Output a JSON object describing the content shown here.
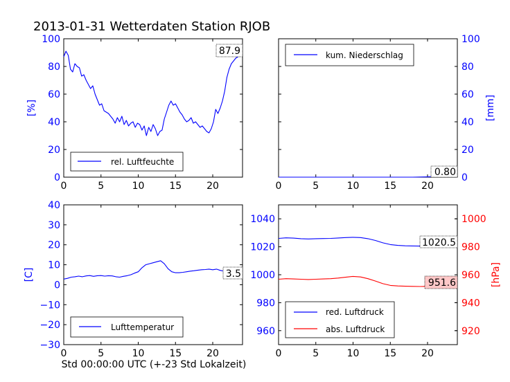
{
  "page_title": "2013-01-31 Wetterdaten Station RJOB",
  "bottom_xlabel": "Std 00:00:00 UTC (+-23 Std Lokalzeit)",
  "colors": {
    "blue": "#0000ff",
    "red": "#ff0000",
    "black": "#000000",
    "annot_pink": "#ffc8c8"
  },
  "chart_data": [
    {
      "id": "humidity",
      "type": "line",
      "title": "",
      "xlabel": "",
      "ylabel": "[%]",
      "xlim": [
        0,
        24
      ],
      "ylim": [
        0,
        100
      ],
      "xticks": [
        "0",
        "5",
        "10",
        "15",
        "20"
      ],
      "yticks": [
        "0",
        "20",
        "40",
        "60",
        "80",
        "100"
      ],
      "grid": false,
      "legend_position": "lower-left",
      "series": [
        {
          "name": "rel. Luftfeuchte",
          "color": "#0000ff",
          "x": [
            0,
            0.3,
            0.6,
            0.9,
            1.2,
            1.5,
            1.8,
            2.1,
            2.4,
            2.7,
            3.0,
            3.3,
            3.6,
            3.9,
            4.2,
            4.5,
            4.8,
            5.1,
            5.4,
            5.7,
            6.0,
            6.3,
            6.6,
            6.9,
            7.2,
            7.5,
            7.8,
            8.1,
            8.4,
            8.7,
            9.0,
            9.3,
            9.6,
            9.9,
            10.2,
            10.5,
            10.8,
            11.1,
            11.4,
            11.7,
            12.0,
            12.3,
            12.6,
            12.9,
            13.2,
            13.5,
            13.8,
            14.1,
            14.4,
            14.7,
            15.0,
            15.3,
            15.6,
            15.9,
            16.2,
            16.5,
            16.8,
            17.1,
            17.4,
            17.7,
            18.0,
            18.3,
            18.6,
            18.9,
            19.2,
            19.5,
            19.8,
            20.1,
            20.4,
            20.7,
            21.0,
            21.3,
            21.6,
            21.9,
            22.2,
            22.5,
            22.8,
            23.1,
            23.4,
            23.7,
            24.0
          ],
          "y": [
            87,
            91,
            88,
            78,
            76,
            82,
            80,
            79,
            73,
            74,
            70,
            67,
            64,
            66,
            60,
            56,
            52,
            53,
            48,
            47,
            46,
            44,
            42,
            39,
            43,
            40,
            44,
            38,
            41,
            37,
            39,
            40,
            36,
            39,
            38,
            34,
            37,
            30,
            36,
            33,
            38,
            35,
            30,
            33,
            34,
            42,
            47,
            52,
            55,
            52,
            53,
            50,
            47,
            45,
            42,
            40,
            41,
            43,
            39,
            40,
            38,
            36,
            37,
            35,
            33,
            32,
            35,
            40,
            49,
            46,
            50,
            55,
            62,
            72,
            78,
            82,
            84,
            86,
            87,
            88,
            87.9
          ]
        }
      ],
      "annotation": {
        "text": "87.9",
        "position": "upper-right"
      }
    },
    {
      "id": "precipitation",
      "type": "line",
      "title": "",
      "xlabel": "",
      "ylabel": "[mm]",
      "xlim": [
        0,
        24
      ],
      "ylim": [
        0,
        100
      ],
      "xticks": [
        "0",
        "5",
        "10",
        "15",
        "20"
      ],
      "yticks": [
        "0",
        "20",
        "40",
        "60",
        "80",
        "100"
      ],
      "y_axis_side": "right",
      "grid": false,
      "legend_position": "upper-left",
      "series": [
        {
          "name": "kum. Niederschlag",
          "color": "#0000ff",
          "x": [
            0,
            6,
            12,
            18,
            20,
            21,
            22,
            23,
            24
          ],
          "y": [
            0,
            0,
            0,
            0,
            0.2,
            0.4,
            0.6,
            0.8,
            0.8
          ]
        }
      ],
      "annotation": {
        "text": "0.80",
        "position": "lower-right"
      }
    },
    {
      "id": "temperature",
      "type": "line",
      "title": "",
      "xlabel": "Std 00:00:00 UTC (+-23 Std Lokalzeit)",
      "ylabel": "[C]",
      "xlim": [
        0,
        24
      ],
      "ylim": [
        -30,
        40
      ],
      "xticks": [
        "0",
        "5",
        "10",
        "15",
        "20"
      ],
      "yticks": [
        "−30",
        "−20",
        "−10",
        "0",
        "10",
        "20",
        "30",
        "40"
      ],
      "grid": false,
      "legend_position": "lower-left",
      "series": [
        {
          "name": "Lufttemperatur",
          "color": "#0000ff",
          "x": [
            0,
            0.5,
            1,
            1.5,
            2,
            2.5,
            3,
            3.5,
            4,
            4.5,
            5,
            5.5,
            6,
            6.5,
            7,
            7.5,
            8,
            8.5,
            9,
            9.5,
            10,
            10.5,
            11,
            11.5,
            12,
            12.5,
            13,
            13.5,
            14,
            14.5,
            15,
            15.5,
            16,
            16.5,
            17,
            17.5,
            18,
            18.5,
            19,
            19.5,
            20,
            20.5,
            21,
            21.5,
            22,
            22.5,
            23,
            23.5,
            24
          ],
          "y": [
            2.8,
            3.2,
            3.8,
            4.0,
            4.3,
            4.0,
            4.4,
            4.6,
            4.2,
            4.5,
            4.6,
            4.3,
            4.5,
            4.4,
            4.0,
            3.8,
            4.2,
            4.5,
            5.0,
            5.8,
            6.5,
            8.5,
            10.0,
            10.5,
            11.0,
            11.5,
            12.0,
            10.5,
            8.0,
            6.5,
            6.0,
            6.0,
            6.2,
            6.5,
            6.8,
            7.0,
            7.3,
            7.5,
            7.6,
            7.8,
            7.5,
            7.8,
            7.2,
            6.8,
            6.0,
            5.0,
            4.2,
            3.8,
            3.5
          ]
        }
      ],
      "annotation": {
        "text": "3.5",
        "position": "right"
      }
    },
    {
      "id": "pressure",
      "type": "line",
      "title": "",
      "xlabel": "",
      "ylabel": "[hPa]",
      "xlim": [
        0,
        24
      ],
      "ylim": [
        950,
        1050
      ],
      "xticks": [
        "0",
        "5",
        "10",
        "15",
        "20"
      ],
      "yticks": [
        "960",
        "980",
        "1000",
        "1020",
        "1040"
      ],
      "ylim_right": [
        910,
        1010
      ],
      "yticks_right": [
        "920",
        "940",
        "960",
        "980",
        "1000"
      ],
      "grid": false,
      "legend_position": "lower-left",
      "series": [
        {
          "name": "red. Luftdruck",
          "color": "#0000ff",
          "axis": "left",
          "x": [
            0,
            1,
            2,
            3,
            4,
            5,
            6,
            7,
            8,
            9,
            10,
            11,
            12,
            13,
            14,
            15,
            16,
            17,
            18,
            19,
            20,
            21,
            22,
            23,
            24
          ],
          "y": [
            1026.0,
            1026.4,
            1026.2,
            1025.8,
            1025.6,
            1025.8,
            1025.9,
            1026.0,
            1026.3,
            1026.6,
            1026.8,
            1026.6,
            1025.8,
            1024.5,
            1022.8,
            1021.6,
            1021.0,
            1020.7,
            1020.6,
            1020.5,
            1020.6,
            1020.5,
            1020.6,
            1020.5,
            1020.5
          ]
        },
        {
          "name": "abs. Luftdruck",
          "color": "#ff0000",
          "axis": "right",
          "x": [
            0,
            1,
            2,
            3,
            4,
            5,
            6,
            7,
            8,
            9,
            10,
            11,
            12,
            13,
            14,
            15,
            16,
            17,
            18,
            19,
            20,
            21,
            22,
            23,
            24
          ],
          "y": [
            956.8,
            957.2,
            957.0,
            956.8,
            956.6,
            956.8,
            957.0,
            957.2,
            957.6,
            958.2,
            958.8,
            958.4,
            957.2,
            955.5,
            953.6,
            952.4,
            952.0,
            951.8,
            951.7,
            951.6,
            951.7,
            951.6,
            951.7,
            951.6,
            951.6
          ]
        }
      ],
      "annotations": [
        {
          "text": "1020.5",
          "position": "right",
          "style": "plain"
        },
        {
          "text": "951.6",
          "position": "right",
          "style": "pink"
        }
      ]
    }
  ]
}
